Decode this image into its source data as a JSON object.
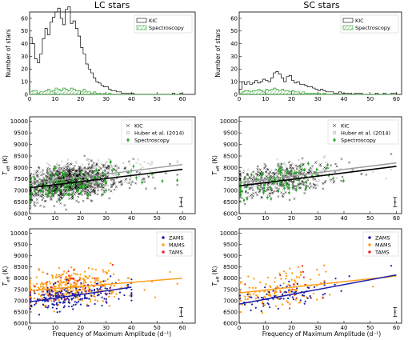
{
  "titles": {
    "left": "LC stars",
    "right": "SC stars"
  },
  "labels": {
    "hist_ylabel": "Number of stars",
    "teff_ylabel_main": "T",
    "teff_ylabel_sub": "eff",
    "teff_ylabel_unit": " (K)",
    "xlabel": "Frequency of Maximum Amplitude (d⁻¹)"
  },
  "legends": {
    "hist": [
      "KIC",
      "Spectroscopy"
    ],
    "teff": [
      "KIC",
      "Huber et al. (2014)",
      "Spectroscopy"
    ],
    "phase": [
      "ZAMS",
      "MAMS",
      "TAMS"
    ]
  },
  "colors": {
    "kic": "#000000",
    "huber": "#9a9a9a",
    "spectroscopy": "#2ca02c",
    "zams": "#1f1fa8",
    "mams": "#ff9f1c",
    "tams": "#e8262a"
  },
  "chart_data": [
    {
      "id": "lc-hist",
      "type": "histogram",
      "panel_title": "LC stars",
      "ylabel": "Number of stars",
      "xlim": [
        0,
        65
      ],
      "ylim": [
        0,
        65
      ],
      "xticks": [
        0,
        10,
        20,
        30,
        40,
        50,
        60
      ],
      "yticks": [
        0,
        10,
        20,
        30,
        40,
        50,
        60
      ],
      "bin_width": 1,
      "legend": [
        "KIC",
        "Spectroscopy"
      ],
      "legend_position": "top-right",
      "series": [
        {
          "name": "KIC",
          "bin_start": 0,
          "values": [
            45,
            40,
            28,
            25,
            32,
            44,
            52,
            47,
            57,
            61,
            65,
            68,
            60,
            55,
            67,
            69,
            56,
            58,
            52,
            46,
            37,
            32,
            24,
            20,
            17,
            13,
            10,
            9,
            7,
            6,
            6,
            4,
            3,
            3,
            2,
            2,
            1,
            1,
            1,
            1,
            1,
            0,
            0,
            0,
            0,
            0,
            0,
            0,
            0,
            0,
            0,
            0,
            0,
            0,
            0,
            0,
            1,
            0,
            0,
            1
          ]
        },
        {
          "name": "Spectroscopy",
          "bin_start": 0,
          "values": [
            2,
            3,
            3,
            1,
            2,
            2,
            3,
            4,
            2,
            3,
            5,
            4,
            3,
            5,
            4,
            3,
            5,
            4,
            3,
            3,
            2,
            4,
            2,
            2,
            1,
            2,
            1,
            1,
            0,
            1,
            0,
            1,
            0,
            0,
            0,
            0,
            0,
            0,
            0,
            0,
            0,
            0,
            0,
            0,
            0,
            0,
            0,
            0,
            0,
            0,
            0,
            0,
            0,
            0,
            0,
            0,
            0,
            0,
            0,
            0
          ]
        }
      ]
    },
    {
      "id": "sc-hist",
      "type": "histogram",
      "panel_title": "SC stars",
      "ylabel": "Number of stars",
      "xlim": [
        0,
        62
      ],
      "ylim": [
        0,
        65
      ],
      "xticks": [
        0,
        10,
        20,
        30,
        40,
        50,
        60
      ],
      "yticks": [
        0,
        10,
        20,
        30,
        40,
        50,
        60
      ],
      "bin_width": 1,
      "legend": [
        "KIC",
        "Spectroscopy"
      ],
      "legend_position": "top-right",
      "series": [
        {
          "name": "KIC",
          "bin_start": 0,
          "values": [
            4,
            10,
            8,
            10,
            8,
            9,
            11,
            9,
            10,
            12,
            11,
            10,
            13,
            17,
            18,
            16,
            13,
            10,
            14,
            15,
            11,
            9,
            10,
            8,
            8,
            7,
            6,
            6,
            5,
            4,
            3,
            4,
            3,
            2,
            2,
            2,
            1,
            1,
            2,
            1,
            1,
            1,
            1,
            0,
            1,
            1,
            1,
            0,
            0,
            0,
            0,
            0,
            1,
            0,
            0,
            1,
            0,
            0,
            1,
            1
          ]
        },
        {
          "name": "Spectroscopy",
          "bin_start": 0,
          "values": [
            1,
            2,
            3,
            3,
            2,
            3,
            3,
            4,
            3,
            2,
            4,
            3,
            4,
            5,
            4,
            3,
            4,
            3,
            3,
            2,
            3,
            2,
            2,
            1,
            2,
            1,
            1,
            1,
            1,
            1,
            1,
            0,
            1,
            0,
            0,
            0,
            0,
            0,
            0,
            0,
            0,
            0,
            0,
            0,
            0,
            0,
            0,
            0,
            0,
            0,
            0,
            0,
            0,
            0,
            0,
            0,
            0,
            0,
            0,
            0
          ]
        }
      ]
    },
    {
      "id": "lc-teff",
      "type": "scatter",
      "ylabel": "T_eff (K)",
      "xlim": [
        0,
        65
      ],
      "ylim": [
        6000,
        10200
      ],
      "xticks": [
        0,
        10,
        20,
        30,
        40,
        50,
        60
      ],
      "yticks": [
        6000,
        6500,
        7000,
        7500,
        8000,
        8500,
        9000,
        9500,
        10000
      ],
      "legend": [
        "KIC",
        "Huber et al. (2014)",
        "Spectroscopy"
      ],
      "legend_position": "top-right",
      "point_counts": {
        "KIC": 900,
        "Huber et al. (2014)": 600,
        "Spectroscopy": 130
      },
      "fits": [
        {
          "name": "KIC",
          "x": [
            0,
            60
          ],
          "y": [
            7120,
            7920
          ]
        },
        {
          "name": "Huber et al. (2014)",
          "x": [
            0,
            60
          ],
          "y": [
            7300,
            8130
          ]
        }
      ],
      "typical_error": {
        "x": 59.5,
        "y": 6500,
        "yerr": 200
      }
    },
    {
      "id": "sc-teff",
      "type": "scatter",
      "ylabel": "T_eff (K)",
      "xlim": [
        0,
        62
      ],
      "ylim": [
        6000,
        10200
      ],
      "xticks": [
        0,
        10,
        20,
        30,
        40,
        50,
        60
      ],
      "yticks": [
        6000,
        6500,
        7000,
        7500,
        8000,
        8500,
        9000,
        9500,
        10000
      ],
      "legend": [
        "KIC",
        "Huber et al. (2014)",
        "Spectroscopy"
      ],
      "legend_position": "top-right",
      "point_counts": {
        "KIC": 350,
        "Huber et al. (2014)": 280,
        "Spectroscopy": 90
      },
      "fits": [
        {
          "name": "KIC",
          "x": [
            0,
            60
          ],
          "y": [
            7200,
            8050
          ]
        },
        {
          "name": "Huber et al. (2014)",
          "x": [
            0,
            60
          ],
          "y": [
            7350,
            8200
          ]
        }
      ],
      "typical_error": {
        "x": 59.5,
        "y": 6500,
        "yerr": 200
      }
    },
    {
      "id": "lc-phase",
      "type": "scatter",
      "ylabel": "T_eff (K)",
      "xlabel": "Frequency of Maximum Amplitude (d⁻¹)",
      "xlim": [
        0,
        65
      ],
      "ylim": [
        6000,
        10200
      ],
      "xticks": [
        0,
        10,
        20,
        30,
        40,
        50,
        60
      ],
      "yticks": [
        6000,
        6500,
        7000,
        7500,
        8000,
        8500,
        9000,
        9500,
        10000
      ],
      "legend": [
        "ZAMS",
        "MAMS",
        "TAMS"
      ],
      "legend_position": "top-right",
      "point_counts": {
        "ZAMS": 220,
        "MAMS": 320,
        "TAMS": 40
      },
      "fits": [
        {
          "name": "ZAMS",
          "x": [
            0,
            40
          ],
          "y": [
            6950,
            7600
          ]
        },
        {
          "name": "MAMS",
          "x": [
            0,
            60
          ],
          "y": [
            7450,
            8000
          ]
        }
      ],
      "typical_error": {
        "x": 59.5,
        "y": 6500,
        "yerr": 200
      }
    },
    {
      "id": "sc-phase",
      "type": "scatter",
      "ylabel": "T_eff (K)",
      "xlabel": "Frequency of Maximum Amplitude (d⁻¹)",
      "xlim": [
        0,
        62
      ],
      "ylim": [
        6000,
        10200
      ],
      "xticks": [
        0,
        10,
        20,
        30,
        40,
        50,
        60
      ],
      "yticks": [
        6000,
        6500,
        7000,
        7500,
        8000,
        8500,
        9000,
        9500,
        10000
      ],
      "legend": [
        "ZAMS",
        "MAMS",
        "TAMS"
      ],
      "legend_position": "top-right",
      "point_counts": {
        "ZAMS": 80,
        "MAMS": 130,
        "TAMS": 15
      },
      "fits": [
        {
          "name": "ZAMS",
          "x": [
            0,
            60
          ],
          "y": [
            6850,
            8150
          ]
        },
        {
          "name": "MAMS",
          "x": [
            0,
            60
          ],
          "y": [
            7350,
            8100
          ]
        }
      ],
      "typical_error": {
        "x": 59.5,
        "y": 6500,
        "yerr": 200
      }
    }
  ]
}
